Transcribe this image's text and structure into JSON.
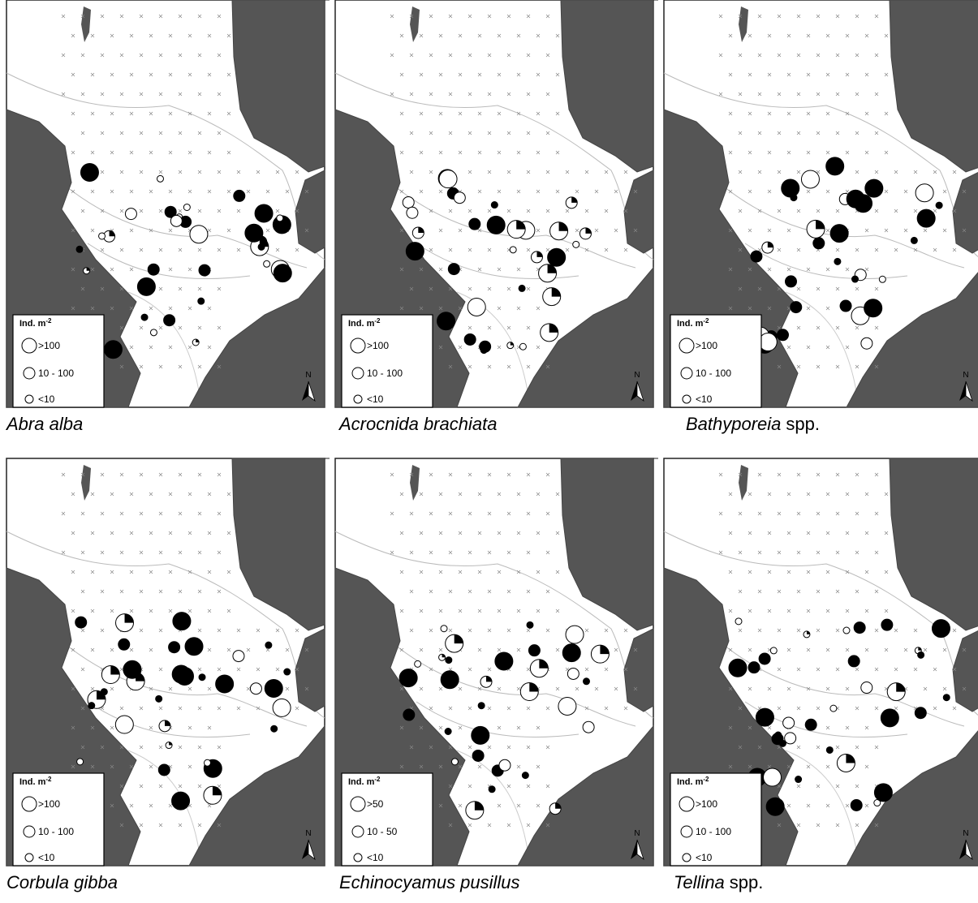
{
  "panels": [
    {
      "name": "Abra alba",
      "legend": {
        "title": "Ind. m",
        "title_sup": "-2",
        "classes": [
          ">100",
          "10 - 100",
          "<10"
        ]
      },
      "north": "N"
    },
    {
      "name": "Acrocnida brachiata",
      "legend": {
        "title": "Ind. m",
        "title_sup": "-2",
        "classes": [
          ">100",
          "10 - 100",
          "<10"
        ]
      },
      "north": "N"
    },
    {
      "name": "Bathyporeia",
      "suffix": "spp.",
      "legend": {
        "title": "Ind. m",
        "title_sup": "-2",
        "classes": [
          ">100",
          "10 - 100",
          "<10"
        ]
      },
      "north": "N"
    },
    {
      "name": "Corbula gibba",
      "legend": {
        "title": "Ind. m",
        "title_sup": "-2",
        "classes": [
          ">100",
          "10 - 100",
          "<10"
        ]
      },
      "north": "N"
    },
    {
      "name": "Echinocyamus pusillus",
      "legend": {
        "title": "Ind. m",
        "title_sup": "-2",
        "classes": [
          ">50",
          "10 - 50",
          "<10"
        ]
      },
      "north": "N"
    },
    {
      "name": "Tellina",
      "suffix": "spp.",
      "legend": {
        "title": "Ind. m",
        "title_sup": "-2",
        "classes": [
          ">100",
          "10 - 100",
          "<10"
        ]
      },
      "north": "N"
    }
  ]
}
